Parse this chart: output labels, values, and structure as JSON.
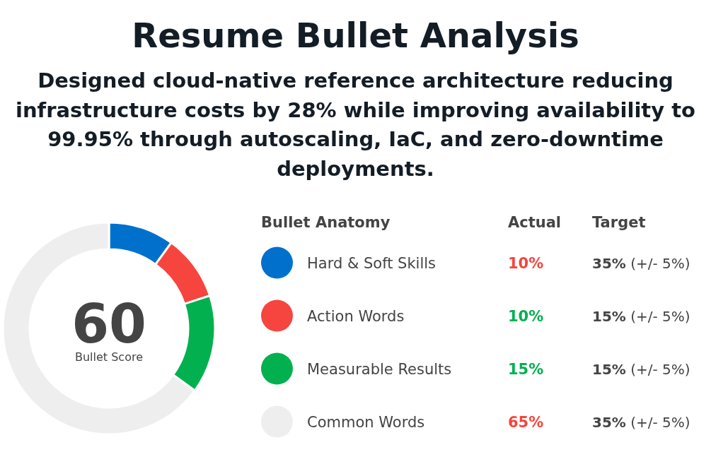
{
  "chart_data": {
    "type": "donut",
    "title": "Resume Bullet Analysis",
    "subtitle": "Designed cloud-native reference architecture reducing infrastructure costs by 28% while improving availability to 99.95% through autoscaling, IaC, and zero-downtime deployments.",
    "legend_title": "Bullet Anatomy",
    "legend": "right",
    "categories": [
      "Hard & Soft Skills",
      "Action Words",
      "Measurable Results",
      "Common Words"
    ],
    "values": [
      10,
      10,
      15,
      65
    ],
    "colors": [
      "#0070cd",
      "#f6453e",
      "#03b050",
      "#eeeeee"
    ],
    "value_labels": [
      "10%",
      "10%",
      "15%",
      "65%"
    ],
    "annotations": [
      "60",
      "Bullet Score",
      "Actual",
      "Target",
      "35% (+/- 5%)",
      "15% (+/- 5%)",
      "15% (+/- 5%)",
      "35% (+/- 5%)"
    ]
  }
}
